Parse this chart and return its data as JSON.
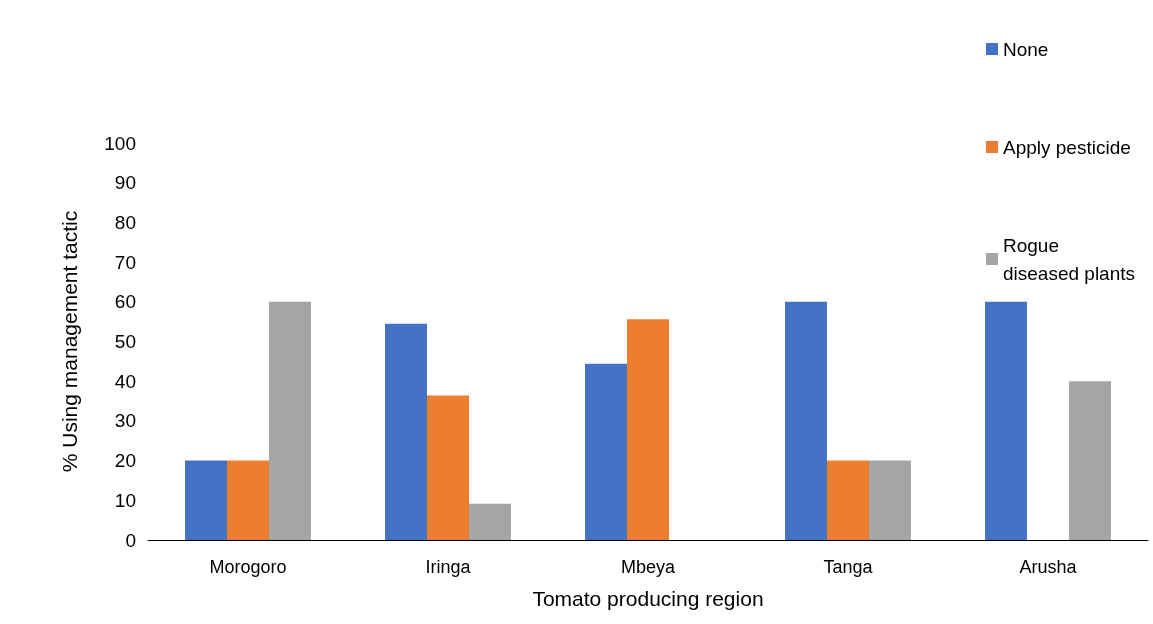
{
  "chart_data": {
    "type": "bar",
    "xlabel": "Tomato producing region",
    "ylabel": "% Using management tactic",
    "categories": [
      "Morogoro",
      "Iringa",
      "Mbeya",
      "Tanga",
      "Arusha"
    ],
    "series": [
      {
        "name": "None",
        "color": "#4472c4",
        "values": [
          20,
          54.5,
          44.4,
          60,
          60
        ]
      },
      {
        "name": "Apply pesticide",
        "color": "#ed7d31",
        "values": [
          20,
          36.4,
          55.6,
          20,
          0
        ]
      },
      {
        "name": "Rogue diseased plants",
        "color": "#a5a5a5",
        "values": [
          60,
          9.1,
          0,
          20,
          40
        ]
      }
    ],
    "ylim": [
      0,
      100
    ],
    "yticks": [
      0,
      10,
      20,
      30,
      40,
      50,
      60,
      70,
      80,
      90,
      100
    ],
    "grid": false,
    "legend": "top right"
  }
}
